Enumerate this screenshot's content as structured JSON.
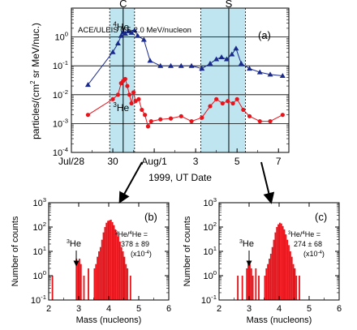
{
  "colors": {
    "he4": "#1a2a8c",
    "he3": "#e8141c",
    "shade": "#bfe6f0",
    "bars": "#e8141c"
  },
  "chart_data": [
    {
      "type": "line",
      "panel_label": "(a)",
      "annotation": "ACE/ULEIS  0.5-2.0 MeV/nucleon",
      "ylabel_main": "particles/(cm",
      "ylabel_sup": "2",
      "ylabel_rest": " sr MeV/nuc.)",
      "xlabel": "1999, UT Date",
      "yscale": "log",
      "ylim": [
        0.0001,
        10
      ],
      "xlim": [
        28.0,
        38.5
      ],
      "y_tick_labels": [
        {
          "value": 0.0001,
          "base": "10",
          "exp": "-4"
        },
        {
          "value": 0.001,
          "base": "10",
          "exp": "-3"
        },
        {
          "value": 0.01,
          "base": "10",
          "exp": "-2"
        },
        {
          "value": 0.1,
          "base": "10",
          "exp": "-1"
        },
        {
          "value": 1,
          "base": "10",
          "exp": "0"
        }
      ],
      "x_tick_labels": [
        {
          "x": 28.0,
          "label": "Jul/28"
        },
        {
          "x": 30.0,
          "label": "30"
        },
        {
          "x": 32.0,
          "label": "Aug/1"
        },
        {
          "x": 34.0,
          "label": "3"
        },
        {
          "x": 36.0,
          "label": "5"
        },
        {
          "x": 38.0,
          "label": "7"
        }
      ],
      "periods": [
        {
          "label": "C",
          "start": 29.85,
          "end": 31.05,
          "marker": 30.5
        },
        {
          "label": "S",
          "start": 34.25,
          "end": 36.4,
          "marker": 35.6
        }
      ],
      "series": [
        {
          "name": "He",
          "name_sup": "4",
          "color_key": "he4",
          "marker": "triangle",
          "x": [
            28.8,
            30.0,
            30.25,
            30.4,
            30.5,
            30.6,
            30.75,
            30.9,
            31.05,
            31.2,
            31.5,
            31.8,
            32.3,
            32.8,
            33.3,
            33.8,
            34.3,
            34.7,
            35.0,
            35.25,
            35.5,
            35.75,
            35.95,
            36.2,
            36.6,
            37.1,
            37.6,
            38.2
          ],
          "y": [
            0.022,
            0.3,
            0.6,
            1.1,
            1.5,
            1.3,
            1.6,
            1.4,
            1.7,
            1.1,
            0.8,
            0.15,
            0.1,
            0.1,
            0.1,
            0.1,
            0.08,
            0.12,
            0.17,
            0.2,
            0.17,
            0.25,
            0.4,
            0.12,
            0.08,
            0.06,
            0.05,
            0.045
          ]
        },
        {
          "name": "He",
          "name_sup": "3",
          "color_key": "he3",
          "marker": "circle",
          "x": [
            28.8,
            30.0,
            30.25,
            30.4,
            30.5,
            30.6,
            30.7,
            30.8,
            30.9,
            31.0,
            31.1,
            31.25,
            31.4,
            31.55,
            31.7,
            31.85,
            32.3,
            32.8,
            33.3,
            33.8,
            34.3,
            34.7,
            35.0,
            35.3,
            35.55,
            35.8,
            36.0,
            36.3,
            36.6,
            37.1,
            37.6,
            38.2
          ],
          "y": [
            0.002,
            0.007,
            0.01,
            0.025,
            0.03,
            0.035,
            0.02,
            0.01,
            0.005,
            0.012,
            0.006,
            0.007,
            0.003,
            0.002,
            0.0008,
            0.0012,
            0.0014,
            0.0015,
            0.0018,
            0.0012,
            0.0016,
            0.004,
            0.007,
            0.005,
            0.006,
            0.005,
            0.007,
            0.003,
            0.0018,
            0.0012,
            0.0012,
            0.002
          ]
        }
      ]
    },
    {
      "type": "bar",
      "panel_label": "(b)",
      "arrow_label": "He",
      "arrow_label_sup": "3",
      "ratio_l1_sup1": "3",
      "ratio_l1_mid": "He/",
      "ratio_l1_sup2": "4",
      "ratio_l1_end": "He =",
      "ratio_l2": "378 ± 89",
      "ratio_l3_base": "(x10",
      "ratio_l3_exp": "-4",
      "ratio_l3_end": ")",
      "xlabel": "Mass (nucleons)",
      "ylabel": "Number of counts",
      "yscale": "log",
      "ylim": [
        0.1,
        1000
      ],
      "xlim": [
        2,
        6
      ],
      "x_tick_labels": [
        "2",
        "3",
        "4",
        "5",
        "6"
      ],
      "y_tick_labels": [
        {
          "value": 0.1,
          "base": "10",
          "exp": "-1"
        },
        {
          "value": 1,
          "base": "10",
          "exp": "0"
        },
        {
          "value": 10,
          "base": "10",
          "exp": "1"
        },
        {
          "value": 100,
          "base": "10",
          "exp": "2"
        },
        {
          "value": 1000,
          "base": "10",
          "exp": "3"
        }
      ],
      "bin_width": 0.05,
      "bin_starts": [
        2.1,
        2.9,
        2.95,
        3.0,
        3.05,
        3.15,
        3.3,
        3.5,
        3.55,
        3.6,
        3.65,
        3.7,
        3.75,
        3.8,
        3.85,
        3.9,
        3.95,
        4.0,
        4.05,
        4.1,
        4.15,
        4.2,
        4.25,
        4.3,
        4.35,
        4.4,
        4.45,
        4.5,
        4.55,
        4.6,
        4.7
      ],
      "counts": [
        1,
        5,
        4,
        5,
        3,
        1,
        2,
        2,
        3,
        6,
        10,
        15,
        30,
        60,
        100,
        150,
        180,
        190,
        200,
        160,
        120,
        80,
        60,
        40,
        25,
        15,
        10,
        6,
        3,
        2,
        1
      ]
    },
    {
      "type": "bar",
      "panel_label": "(c)",
      "arrow_label": "He",
      "arrow_label_sup": "3",
      "ratio_l1_sup1": "3",
      "ratio_l1_mid": "He/",
      "ratio_l1_sup2": "4",
      "ratio_l1_end": "He =",
      "ratio_l2": "274 ± 68",
      "ratio_l3_base": "(x10",
      "ratio_l3_exp": "-4",
      "ratio_l3_end": ")",
      "xlabel": "Mass (nucleons)",
      "ylabel": "Number of counts",
      "yscale": "log",
      "ylim": [
        0.1,
        1000
      ],
      "xlim": [
        2,
        6
      ],
      "x_tick_labels": [
        "2",
        "3",
        "4",
        "5",
        "6"
      ],
      "y_tick_labels": [
        {
          "value": 0.1,
          "base": "10",
          "exp": "-1"
        },
        {
          "value": 1,
          "base": "10",
          "exp": "0"
        },
        {
          "value": 10,
          "base": "10",
          "exp": "1"
        },
        {
          "value": 100,
          "base": "10",
          "exp": "2"
        },
        {
          "value": 1000,
          "base": "10",
          "exp": "3"
        }
      ],
      "bin_width": 0.05,
      "bin_starts": [
        2.6,
        2.75,
        2.9,
        2.95,
        3.0,
        3.05,
        3.1,
        3.2,
        3.3,
        3.5,
        3.55,
        3.6,
        3.65,
        3.7,
        3.75,
        3.8,
        3.85,
        3.9,
        3.95,
        4.0,
        4.05,
        4.1,
        4.15,
        4.2,
        4.25,
        4.3,
        4.35,
        4.4,
        4.45,
        4.5,
        4.55,
        4.65
      ],
      "counts": [
        1,
        1,
        2,
        4,
        3,
        2,
        1,
        2,
        1,
        1,
        2,
        3,
        5,
        8,
        15,
        30,
        60,
        100,
        130,
        150,
        140,
        110,
        80,
        50,
        30,
        18,
        10,
        6,
        3,
        2,
        1,
        1
      ]
    }
  ]
}
